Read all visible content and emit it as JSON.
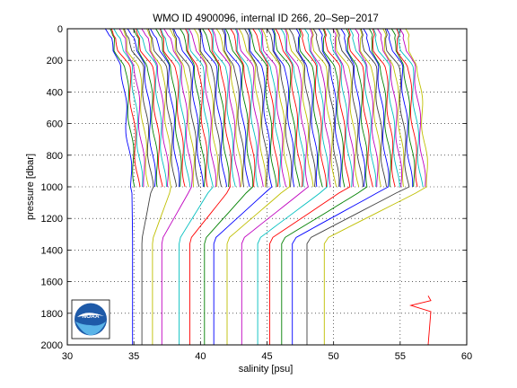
{
  "chart_data": {
    "type": "line",
    "title": "WMO ID 4900096, internal ID 266, 20–Sep−2017",
    "xlabel": "salinity [psu]",
    "ylabel": "pressure [dbar]",
    "xlim": [
      30,
      60
    ],
    "ylim": [
      0,
      2000
    ],
    "y_reversed": true,
    "grid": true,
    "grid_style": "dotted",
    "xticks": [
      30,
      35,
      40,
      45,
      50,
      55,
      60
    ],
    "yticks": [
      0,
      200,
      400,
      600,
      800,
      1000,
      1200,
      1400,
      1600,
      1800,
      2000
    ],
    "profile_offset_psu": 0.25,
    "num_profiles": 90,
    "deep_profile_positions": [
      34.9,
      35.6,
      36.4,
      37.1,
      38.4,
      39.2,
      40.3,
      41.0,
      42.0,
      43.1,
      44.3,
      45.2,
      46.1,
      46.9,
      48.0,
      49.3
    ],
    "series_colors": [
      "#0000ff",
      "#008000",
      "#ff0000",
      "#00bfbf",
      "#bf00bf",
      "#bfbf00",
      "#404040"
    ],
    "spike": {
      "pressure": 1750,
      "salinity": 55.8,
      "color": "#ff0000"
    }
  },
  "logo": {
    "text": "NOAA"
  }
}
